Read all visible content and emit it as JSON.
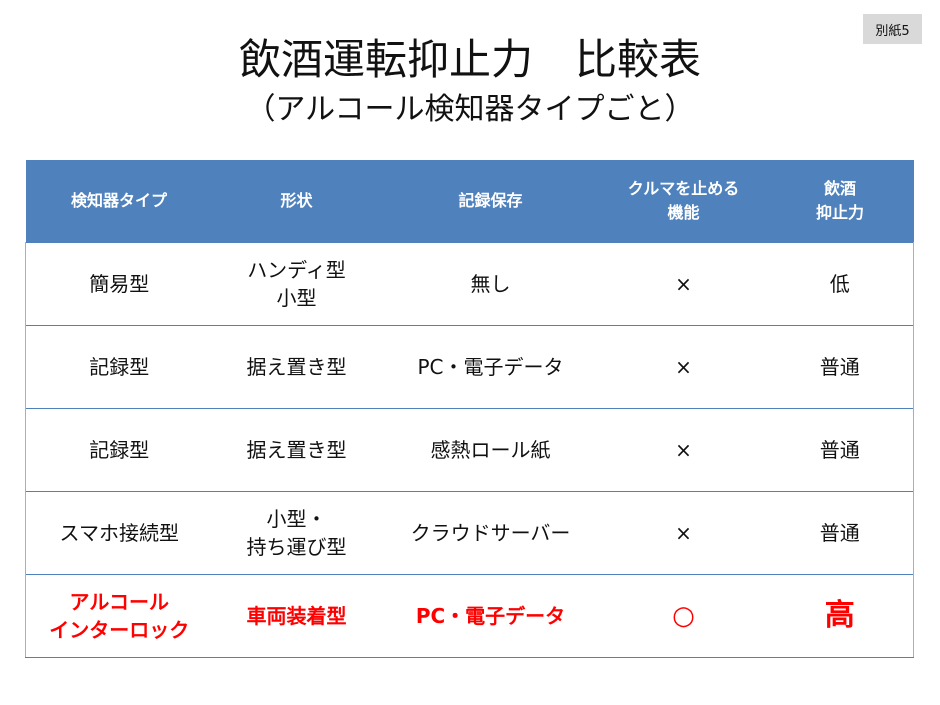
{
  "badge": "別紙5",
  "title": "飲酒運転抑止力　比較表",
  "subtitle": "（アルコール検知器タイプごと）",
  "table": {
    "headers": [
      "検知器タイプ",
      "形状",
      "記録保存",
      "クルマを止める\n機能",
      "飲酒\n抑止力"
    ],
    "rows": [
      [
        "簡易型",
        "ハンディ型\n小型",
        "無し",
        "×",
        "低"
      ],
      [
        "記録型",
        "据え置き型",
        "PC・電子データ",
        "×",
        "普通"
      ],
      [
        "記録型",
        "据え置き型",
        "感熱ロール紙",
        "×",
        "普通"
      ],
      [
        "スマホ接続型",
        "小型・\n持ち運び型",
        "クラウドサーバー",
        "×",
        "普通"
      ],
      [
        "アルコール\nインターロック",
        "車両装着型",
        "PC・電子データ",
        "○",
        "高"
      ]
    ],
    "highlight_color": "#ff0000",
    "header_color": "#4f81bd"
  }
}
